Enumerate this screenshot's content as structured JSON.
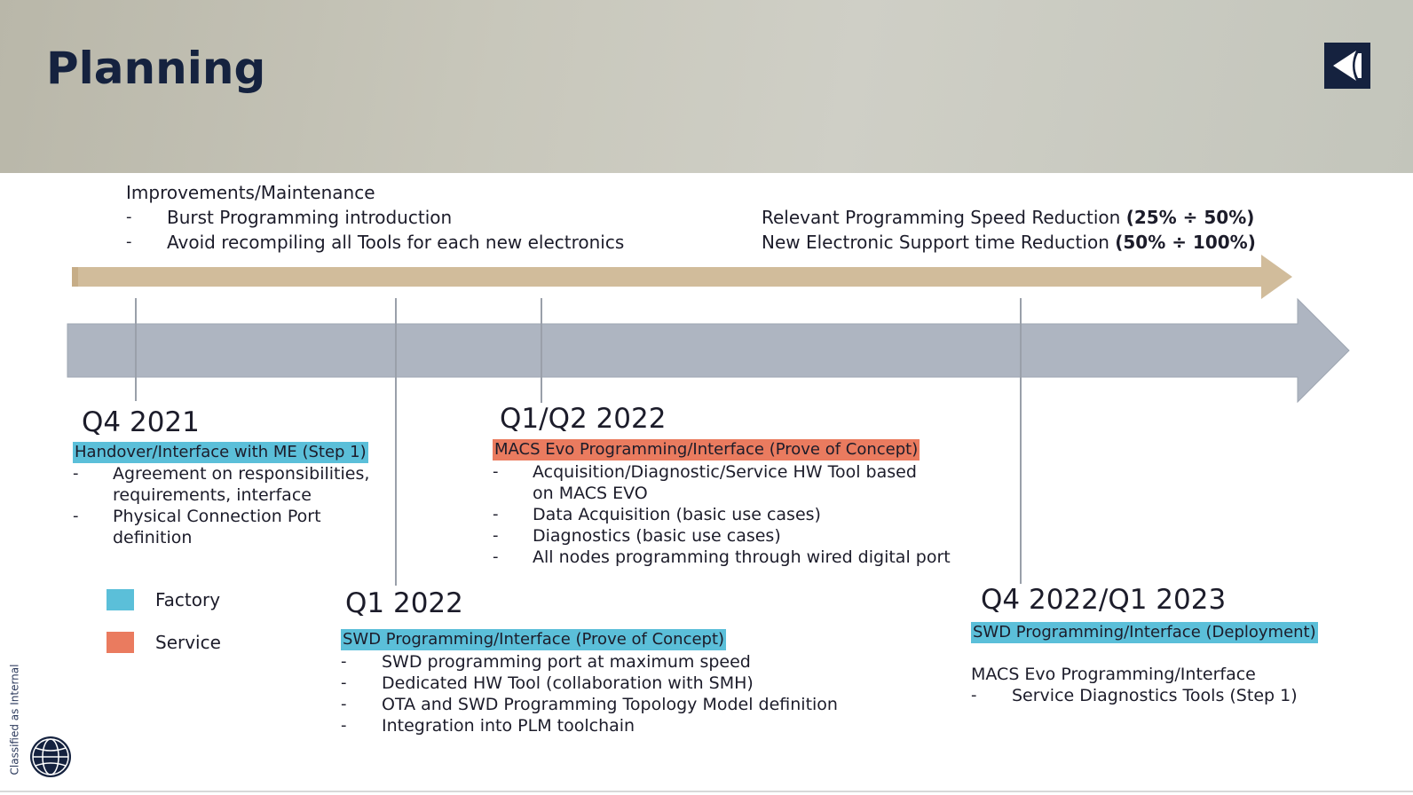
{
  "header": {
    "title": "Planning",
    "logo_icon": "electrolux-logo-icon"
  },
  "top_band": {
    "heading": "Improvements/Maintenance",
    "items": [
      "Burst Programming introduction",
      "Avoid recompiling all Tools for each new electronics"
    ],
    "right_lines": [
      {
        "text": "Relevant Programming Speed Reduction ",
        "bold": "(25% ÷ 50%)"
      },
      {
        "text": "New Electronic Support time Reduction ",
        "bold": "(50% ÷ 100%)"
      }
    ]
  },
  "milestones": {
    "q4_2021": {
      "quarter": "Q4 2021",
      "label": "Handover/Interface with ME (Step 1)",
      "items": [
        "Agreement on responsibilities, requirements, interface",
        "Physical Connection Port definition"
      ]
    },
    "q1q2_2022": {
      "quarter": "Q1/Q2 2022",
      "label": "MACS Evo Programming/Interface (Prove of Concept)",
      "items": [
        "Acquisition/Diagnostic/Service HW Tool based on MACS EVO",
        "Data Acquisition (basic use cases)",
        "Diagnostics (basic use cases)",
        "All nodes programming through wired digital port"
      ]
    },
    "q1_2022": {
      "quarter": "Q1 2022",
      "label": "SWD Programming/Interface (Prove of Concept)",
      "items": [
        "SWD programming port at maximum speed",
        "Dedicated HW Tool (collaboration with SMH)",
        "OTA and SWD Programming Topology Model definition",
        "Integration into PLM toolchain"
      ]
    },
    "q4_2022": {
      "quarter": "Q4 2022/Q1 2023",
      "label": "SWD Programming/Interface (Deployment)",
      "sub_heading": "MACS Evo Programming/Interface",
      "items": [
        "Service Diagnostics Tools (Step 1)"
      ]
    }
  },
  "legend": [
    {
      "label": "Factory",
      "color": "#5bbfd9"
    },
    {
      "label": "Service",
      "color": "#ea7b5f"
    }
  ],
  "footer": {
    "classification": "Classified as Internal",
    "globe_icon": "globe-icon"
  },
  "colors": {
    "title": "#15223f",
    "factory": "#5bbfd9",
    "service": "#ea7b5f",
    "tan_arrow": "#d1bc9b",
    "grey_arrow": "#aeb5c1"
  }
}
